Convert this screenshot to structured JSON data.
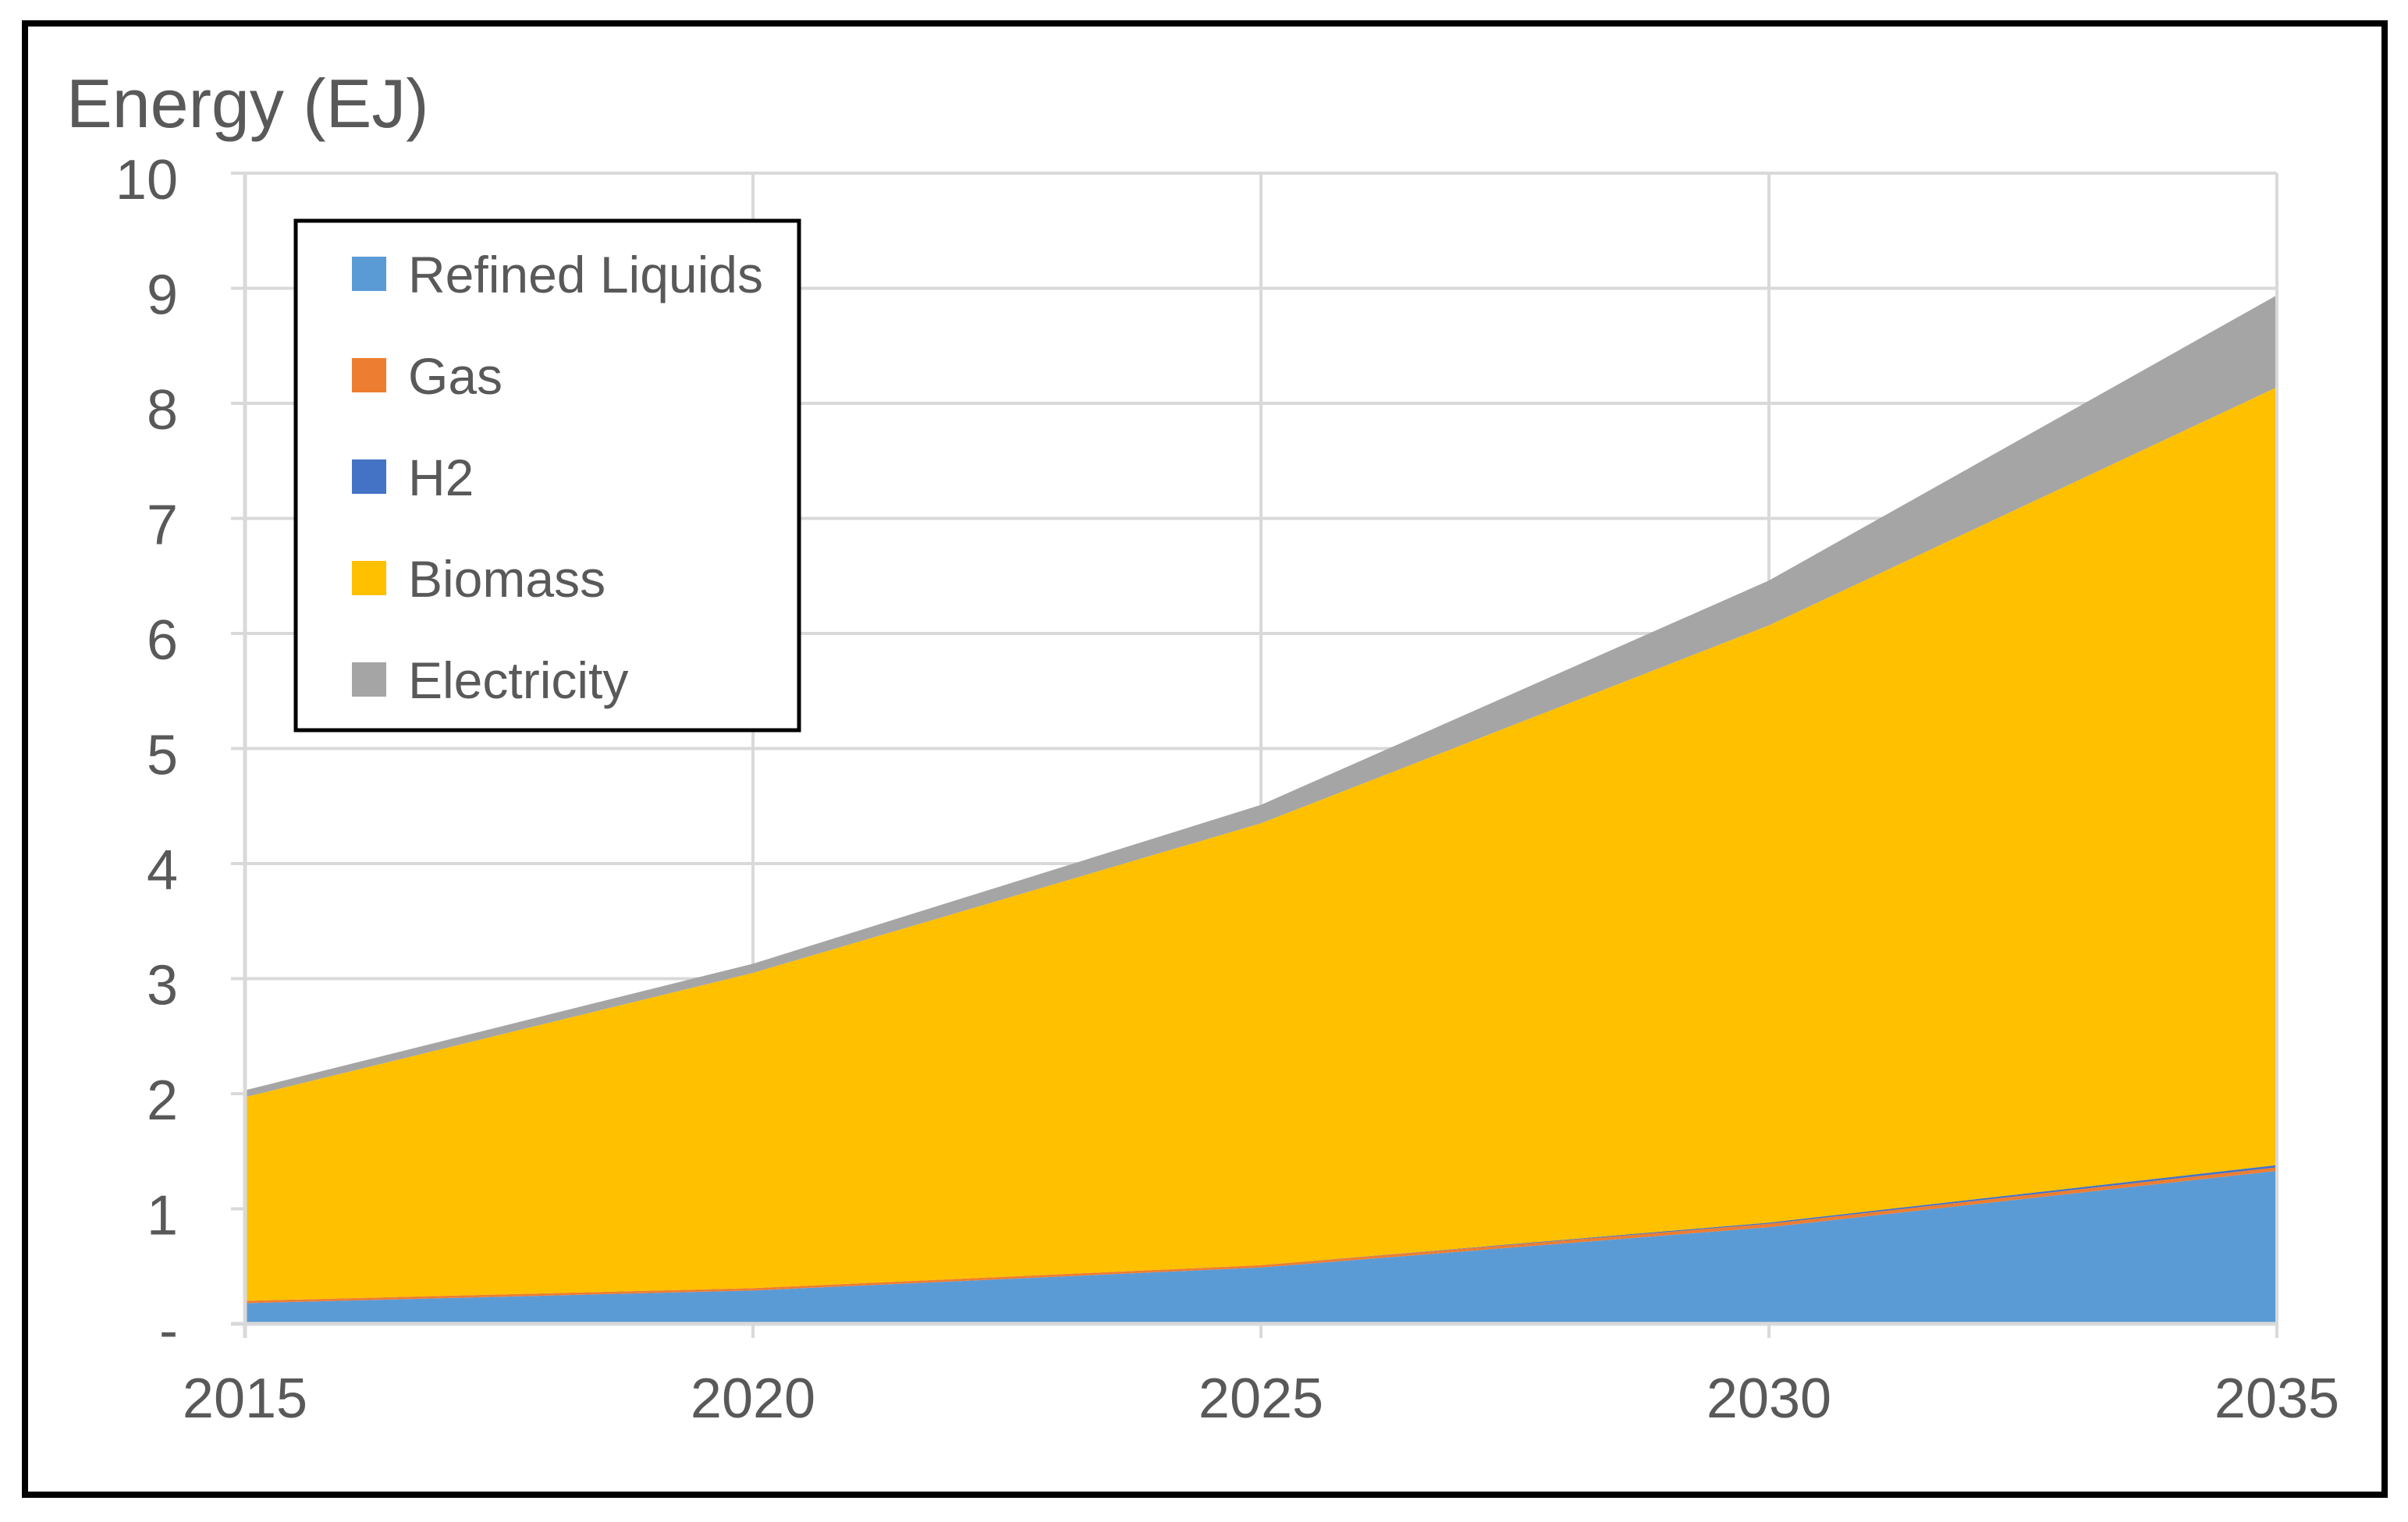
{
  "title": "Energy (EJ)",
  "chart_data": {
    "type": "area",
    "stacked": true,
    "title": "Energy (EJ)",
    "x": [
      2015,
      2020,
      2025,
      2030,
      2035
    ],
    "x_tick_labels": [
      "2015",
      "2020",
      "2025",
      "2030",
      "2035"
    ],
    "y_tick_labels": [
      "-",
      "1",
      "2",
      "3",
      "4",
      "5",
      "6",
      "7",
      "8",
      "9",
      "10"
    ],
    "ylim": [
      0,
      10
    ],
    "grid": true,
    "legend_position": "upper-left-inside",
    "series": [
      {
        "name": "Refined Liquids",
        "slug": "refined-liquids",
        "color": "#5B9BD5",
        "values": [
          0.18,
          0.29,
          0.49,
          0.84,
          1.33
        ]
      },
      {
        "name": "Gas",
        "slug": "gas",
        "color": "#ED7D31",
        "values": [
          0.02,
          0.02,
          0.02,
          0.03,
          0.03
        ]
      },
      {
        "name": "H2",
        "slug": "h2",
        "color": "#4472C4",
        "values": [
          0.0,
          0.0,
          0.0,
          0.01,
          0.02
        ]
      },
      {
        "name": "Biomass",
        "slug": "biomass",
        "color": "#FFC000",
        "values": [
          1.77,
          2.74,
          3.84,
          5.19,
          6.76
        ]
      },
      {
        "name": "Electricity",
        "slug": "electricity",
        "color": "#A5A5A5",
        "values": [
          0.06,
          0.08,
          0.16,
          0.39,
          0.8
        ]
      }
    ],
    "totals": [
      2.03,
      3.13,
      4.51,
      6.46,
      8.94
    ],
    "colors": {
      "axis_text": "#595959",
      "gridline": "#D9D9D9",
      "chart_border": "#000000",
      "legend_border": "#000000",
      "background": "#FFFFFF"
    }
  }
}
